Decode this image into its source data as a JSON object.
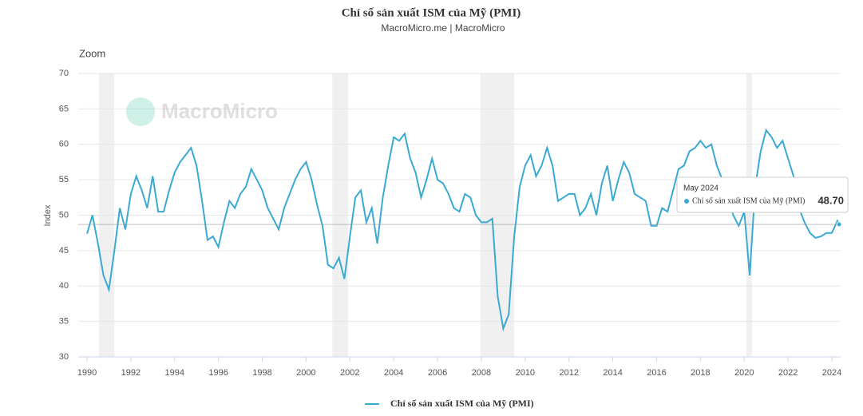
{
  "chart_data": {
    "type": "line",
    "title": "Chỉ số sản xuất ISM của Mỹ (PMI)",
    "subtitle": "MacroMicro.me | MacroMicro",
    "zoom_label": "Zoom",
    "watermark": "MacroMicro",
    "ylabel": "Index",
    "xlim": [
      1989.6,
      2024.4
    ],
    "xticks": [
      1990,
      1992,
      1994,
      1996,
      1998,
      2000,
      2002,
      2004,
      2006,
      2008,
      2010,
      2012,
      2014,
      2016,
      2018,
      2020,
      2022,
      2024
    ],
    "ylim": [
      30,
      70
    ],
    "yticks": [
      30,
      35,
      40,
      45,
      50,
      55,
      60,
      65,
      70
    ],
    "grid": true,
    "bands": [
      [
        1990.55,
        1991.25
      ],
      [
        2001.2,
        2001.92
      ],
      [
        2007.95,
        2009.5
      ],
      [
        2020.1,
        2020.35
      ]
    ],
    "x": [
      1990,
      1990.25,
      1990.5,
      1990.75,
      1991,
      1991.25,
      1991.5,
      1991.75,
      1992,
      1992.25,
      1992.5,
      1992.75,
      1993,
      1993.25,
      1993.5,
      1993.75,
      1994,
      1994.25,
      1994.5,
      1994.75,
      1995,
      1995.25,
      1995.5,
      1995.75,
      1996,
      1996.25,
      1996.5,
      1996.75,
      1997,
      1997.25,
      1997.5,
      1997.75,
      1998,
      1998.25,
      1998.5,
      1998.75,
      1999,
      1999.25,
      1999.5,
      1999.75,
      2000,
      2000.25,
      2000.5,
      2000.75,
      2001,
      2001.25,
      2001.5,
      2001.75,
      2002,
      2002.25,
      2002.5,
      2002.75,
      2003,
      2003.25,
      2003.5,
      2003.75,
      2004,
      2004.25,
      2004.5,
      2004.75,
      2005,
      2005.25,
      2005.5,
      2005.75,
      2006,
      2006.25,
      2006.5,
      2006.75,
      2007,
      2007.25,
      2007.5,
      2007.75,
      2008,
      2008.25,
      2008.5,
      2008.75,
      2009,
      2009.25,
      2009.5,
      2009.75,
      2010,
      2010.25,
      2010.5,
      2010.75,
      2011,
      2011.25,
      2011.5,
      2011.75,
      2012,
      2012.25,
      2012.5,
      2012.75,
      2013,
      2013.25,
      2013.5,
      2013.75,
      2014,
      2014.25,
      2014.5,
      2014.75,
      2015,
      2015.25,
      2015.5,
      2015.75,
      2016,
      2016.25,
      2016.5,
      2016.75,
      2017,
      2017.25,
      2017.5,
      2017.75,
      2018,
      2018.25,
      2018.5,
      2018.75,
      2019,
      2019.25,
      2019.5,
      2019.75,
      2020,
      2020.25,
      2020.5,
      2020.75,
      2021,
      2021.25,
      2021.5,
      2021.75,
      2022,
      2022.25,
      2022.5,
      2022.75,
      2023,
      2023.25,
      2023.5,
      2023.75,
      2024,
      2024.25,
      2024.33
    ],
    "series": [
      {
        "name": "Chỉ số sản xuất ISM của Mỹ (PMI)",
        "color": "#3aa9d3",
        "values": [
          47.4,
          50,
          46,
          41.5,
          39.5,
          45,
          51,
          48,
          53,
          55.5,
          53.5,
          51,
          55.5,
          50.5,
          50.5,
          53.5,
          56,
          57.5,
          58.5,
          59.5,
          57,
          52,
          46.5,
          47,
          45.5,
          49,
          52,
          51,
          53,
          54,
          56.5,
          55,
          53.5,
          51,
          49.5,
          48,
          51,
          53,
          55,
          56.5,
          57.5,
          55,
          51.5,
          48.5,
          43,
          42.5,
          44,
          41,
          47,
          52.5,
          53.5,
          49,
          51,
          46,
          52.5,
          57,
          61,
          60.5,
          61.5,
          58,
          56,
          52.5,
          55,
          58,
          55,
          54.5,
          53,
          51,
          50.5,
          53,
          52.5,
          50,
          49,
          49,
          49.5,
          38.5,
          34,
          36,
          47,
          54,
          57,
          58.5,
          55.5,
          57,
          59.5,
          57,
          52,
          52.5,
          53,
          53,
          50,
          51,
          53,
          50,
          54.5,
          57,
          52,
          55,
          57.5,
          56,
          53,
          52.5,
          52,
          48.5,
          48.5,
          51,
          50.5,
          53.5,
          56.5,
          57,
          59,
          59.5,
          60.5,
          59.5,
          60,
          57,
          55,
          52.5,
          50,
          48.5,
          50.5,
          41.5,
          54,
          59,
          62,
          61,
          59.5,
          60.5,
          58,
          55.5,
          51,
          49,
          47.5,
          46.8,
          47,
          47.5,
          47.5,
          49.2,
          48.7
        ]
      }
    ],
    "tooltip": {
      "label": "May 2024",
      "value": 48.7,
      "value_label": "48.70"
    }
  }
}
